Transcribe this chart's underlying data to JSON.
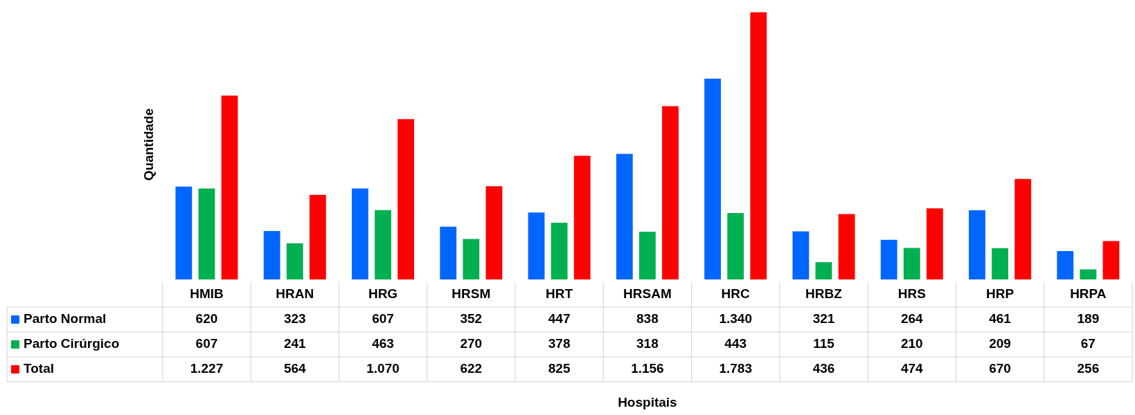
{
  "chart_data": {
    "type": "bar",
    "annotations": [
      "Hospitais"
    ],
    "ylabel": "Quantidade",
    "categories": [
      "HMIB",
      "HRAN",
      "HRG",
      "HRSM",
      "HRT",
      "HRSAM",
      "HRC",
      "HRBZ",
      "HRS",
      "HRP",
      "HRPA"
    ],
    "series": [
      {
        "name": "Parto Normal",
        "color": "#0066ff",
        "values": [
          620,
          323,
          607,
          352,
          447,
          838,
          1340,
          321,
          264,
          461,
          189
        ],
        "value_labels": [
          "620",
          "323",
          "607",
          "352",
          "447",
          "838",
          "1.340",
          "321",
          "264",
          "461",
          "189"
        ]
      },
      {
        "name": "Parto Cirúrgico",
        "color": "#00b050",
        "values": [
          607,
          241,
          463,
          270,
          378,
          318,
          443,
          115,
          210,
          209,
          67
        ],
        "value_labels": [
          "607",
          "241",
          "463",
          "270",
          "378",
          "318",
          "443",
          "115",
          "210",
          "209",
          "67"
        ]
      },
      {
        "name": "Total",
        "color": "#ff0000",
        "values": [
          1227,
          564,
          1070,
          622,
          825,
          1156,
          1783,
          436,
          474,
          670,
          256
        ],
        "value_labels": [
          "1.227",
          "564",
          "1.070",
          "622",
          "825",
          "1.156",
          "1.783",
          "436",
          "474",
          "670",
          "256"
        ]
      }
    ],
    "legend": "bottom left",
    "tick_labels": "x",
    "grid": false
  }
}
